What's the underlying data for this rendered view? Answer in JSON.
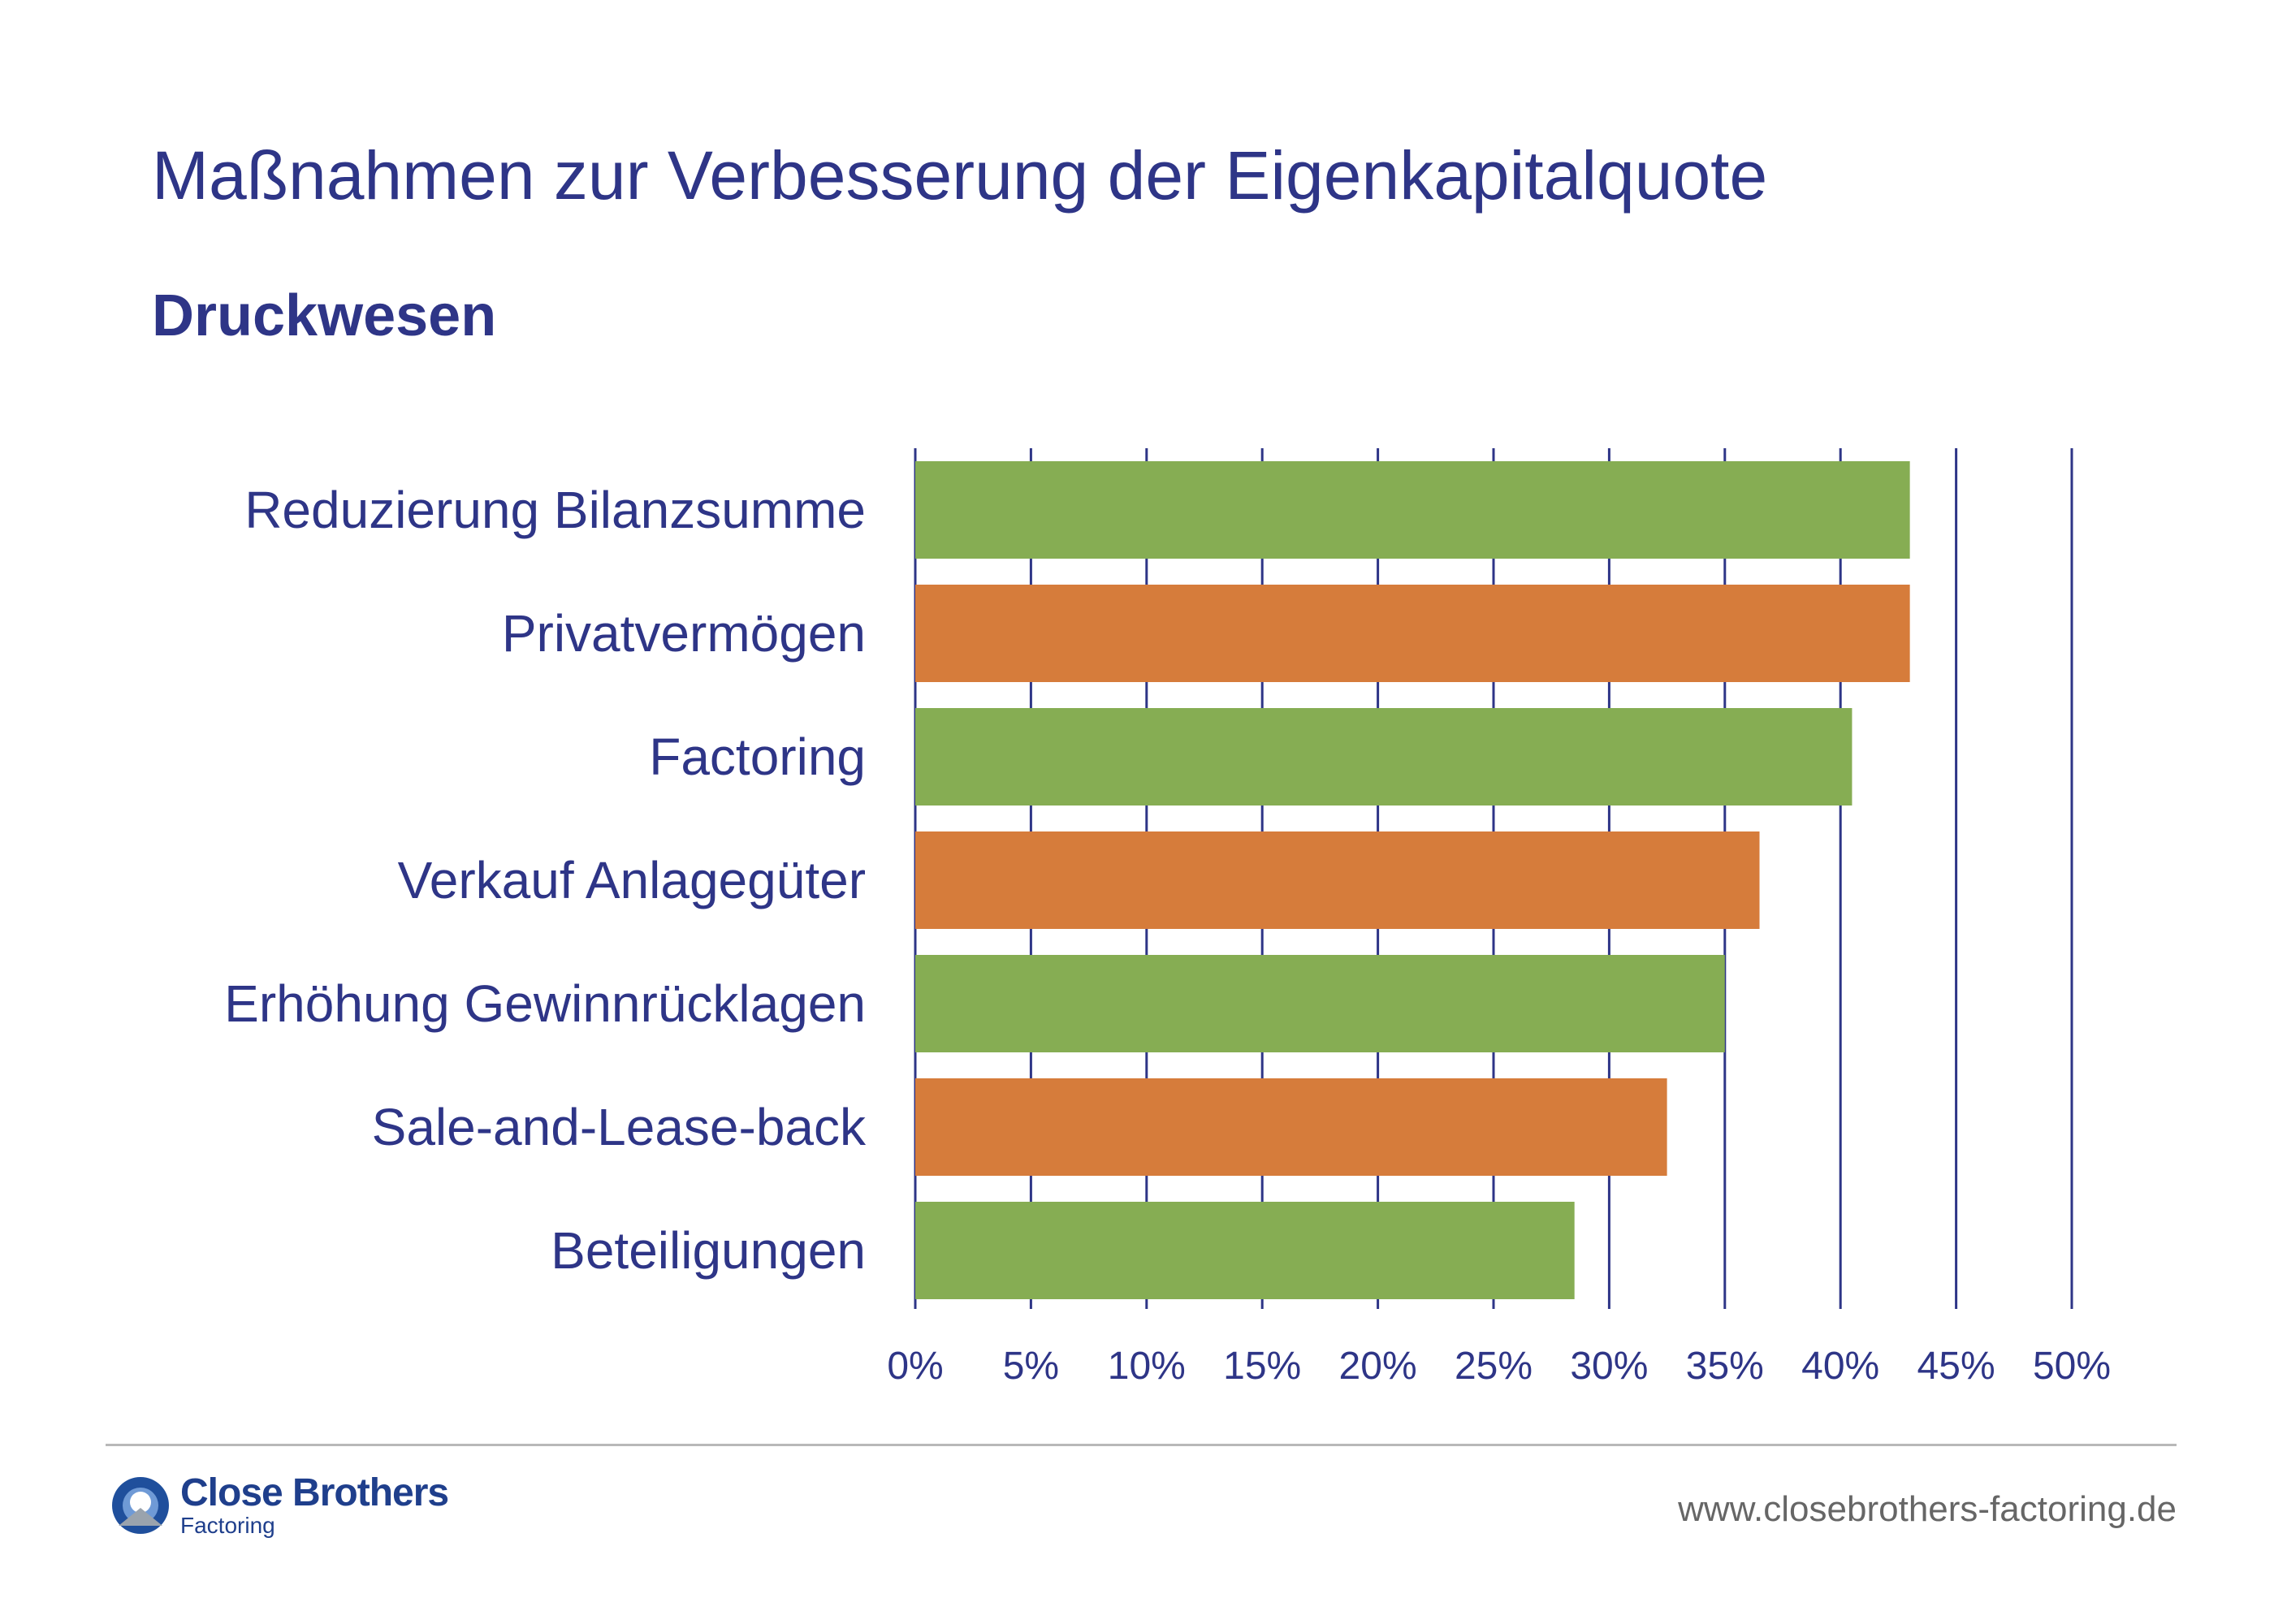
{
  "header": {
    "title": "Maßnahmen zur Verbesserung der Eigenkapitalquote",
    "subtitle": "Druckwesen"
  },
  "chart_data": {
    "type": "bar",
    "orientation": "horizontal",
    "title": "Maßnahmen zur Verbesserung der Eigenkapitalquote",
    "subtitle": "Druckwesen",
    "categories": [
      "Reduzierung Bilanzsumme",
      "Privatvermögen",
      "Factoring",
      "Verkauf Anlagegüter",
      "Erhöhung Gewinnrücklagen",
      "Sale-and-Lease-back",
      "Beteiligungen"
    ],
    "values": [
      43,
      43,
      40.5,
      36.5,
      35,
      32.5,
      28.5
    ],
    "colors": [
      "#86ad53",
      "#d67c3b",
      "#86ad53",
      "#d67c3b",
      "#86ad53",
      "#d67c3b",
      "#86ad53"
    ],
    "xlim": [
      0,
      50
    ],
    "xticks": [
      "0%",
      "5%",
      "10%",
      "15%",
      "20%",
      "25%",
      "30%",
      "35%",
      "40%",
      "45%",
      "50%"
    ],
    "grid": true,
    "legend": "none"
  },
  "footer": {
    "brand_name": "Close Brothers",
    "brand_sub": "Factoring",
    "url": "www.closebrothers-factoring.de"
  },
  "colors": {
    "text": "#2e3587",
    "green": "#86ad53",
    "orange": "#d67c3b",
    "grid": "#2e3587"
  },
  "icons": {
    "logo": "close-brothers-logo-icon"
  }
}
